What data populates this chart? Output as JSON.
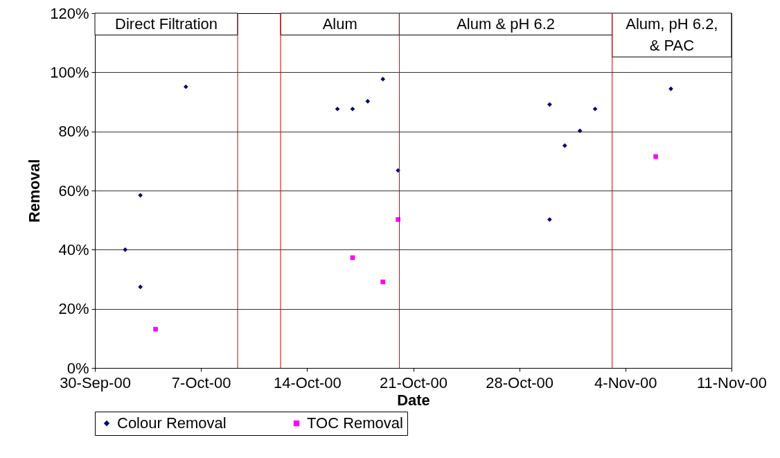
{
  "chart_data": {
    "type": "scatter",
    "xlabel": "Date",
    "ylabel": "Removal",
    "xlim": [
      "2000-09-30",
      "2000-11-11"
    ],
    "xticks": [
      {
        "value": "2000-09-30",
        "label": "30-Sep-00"
      },
      {
        "value": "2000-10-07",
        "label": "7-Oct-00"
      },
      {
        "value": "2000-10-14",
        "label": "14-Oct-00"
      },
      {
        "value": "2000-10-21",
        "label": "21-Oct-00"
      },
      {
        "value": "2000-10-28",
        "label": "28-Oct-00"
      },
      {
        "value": "2000-11-04",
        "label": "4-Nov-00"
      },
      {
        "value": "2000-11-11",
        "label": "11-Nov-00"
      }
    ],
    "ylim": [
      0,
      120
    ],
    "yticks": [
      {
        "value": 0,
        "label": "0%"
      },
      {
        "value": 20,
        "label": "20%"
      },
      {
        "value": 40,
        "label": "40%"
      },
      {
        "value": 60,
        "label": "60%"
      },
      {
        "value": 80,
        "label": "80%"
      },
      {
        "value": 100,
        "label": "100%"
      },
      {
        "value": 120,
        "label": "120%"
      }
    ],
    "series": [
      {
        "name": "Colour Removal",
        "color": "#000080",
        "marker": "diamond",
        "x": [
          "2000-10-02",
          "2000-10-03",
          "2000-10-03",
          "2000-10-06",
          "2000-10-16",
          "2000-10-17",
          "2000-10-18",
          "2000-10-19",
          "2000-10-20",
          "2000-10-30",
          "2000-10-30",
          "2000-10-31",
          "2000-11-01",
          "2000-11-02",
          "2000-11-07"
        ],
        "values": [
          40,
          58.4,
          27.4,
          95.1,
          87.6,
          87.6,
          90.2,
          97.7,
          66.8,
          89.1,
          50.2,
          75.2,
          80.2,
          87.6,
          94.4
        ]
      },
      {
        "name": "TOC Removal",
        "color": "#ff00ff",
        "marker": "square",
        "x": [
          "2000-10-04",
          "2000-10-17",
          "2000-10-19",
          "2000-10-20",
          "2000-11-06"
        ],
        "values": [
          13.1,
          37.3,
          29.1,
          50.2,
          71.5
        ]
      }
    ],
    "ref_lines": [
      {
        "axis": "x",
        "value": "2000-10-09T10:00",
        "color": "#cc0000"
      },
      {
        "axis": "x",
        "value": "2000-10-12T06:00",
        "color": "#cc0000"
      },
      {
        "axis": "x",
        "value": "2000-10-20T02:00",
        "color": "#cc0000"
      },
      {
        "axis": "x",
        "value": "2000-11-03T03:00",
        "color": "#cc0000"
      }
    ],
    "bands": [
      {
        "axis": "x",
        "from": "2000-09-30",
        "to": "2000-10-09T10:00",
        "label": "Direct Filtration"
      },
      {
        "axis": "x",
        "from": "2000-10-12T06:00",
        "to": "2000-10-20T02:00",
        "label": "Alum"
      },
      {
        "axis": "x",
        "from": "2000-10-20T02:00",
        "to": "2000-11-03T03:00",
        "label": "Alum & pH 6.2"
      },
      {
        "axis": "x",
        "from": "2000-11-03T03:00",
        "to": "2000-11-11",
        "label": "Alum, pH 6.2, & PAC"
      }
    ],
    "grid": "y",
    "legend": "bottom"
  }
}
